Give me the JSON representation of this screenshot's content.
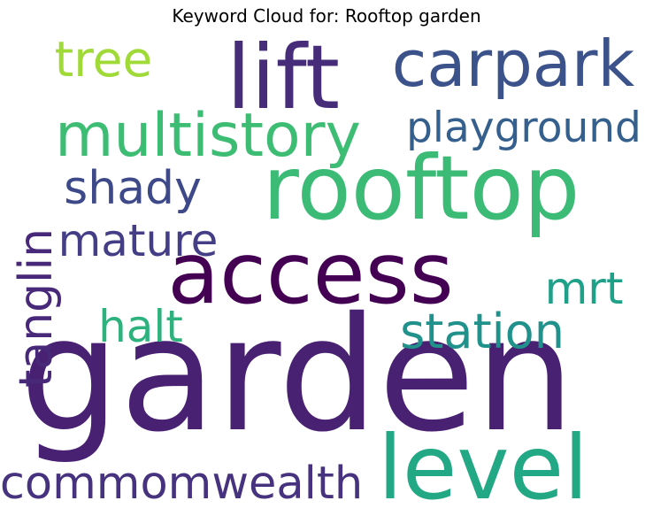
{
  "title": "Keyword Cloud for: Rooftop garden",
  "words": [
    {
      "text": "garden",
      "color": "#482173"
    },
    {
      "text": "rooftop",
      "color": "#3bbb75"
    },
    {
      "text": "access",
      "color": "#440154"
    },
    {
      "text": "lift",
      "color": "#472c7a"
    },
    {
      "text": "level",
      "color": "#22a884"
    },
    {
      "text": "carpark",
      "color": "#3b528b"
    },
    {
      "text": "multistory",
      "color": "#3dbc74"
    },
    {
      "text": "playground",
      "color": "#355f8d"
    },
    {
      "text": "commomwealth",
      "color": "#46327e"
    },
    {
      "text": "station",
      "color": "#21918c"
    },
    {
      "text": "mature",
      "color": "#433e85"
    },
    {
      "text": "shady",
      "color": "#3e4989"
    },
    {
      "text": "tree",
      "color": "#a0da39"
    },
    {
      "text": "tanglin",
      "color": "#482979"
    },
    {
      "text": "halt",
      "color": "#2db27d"
    },
    {
      "text": "mrt",
      "color": "#1fa088"
    }
  ]
}
